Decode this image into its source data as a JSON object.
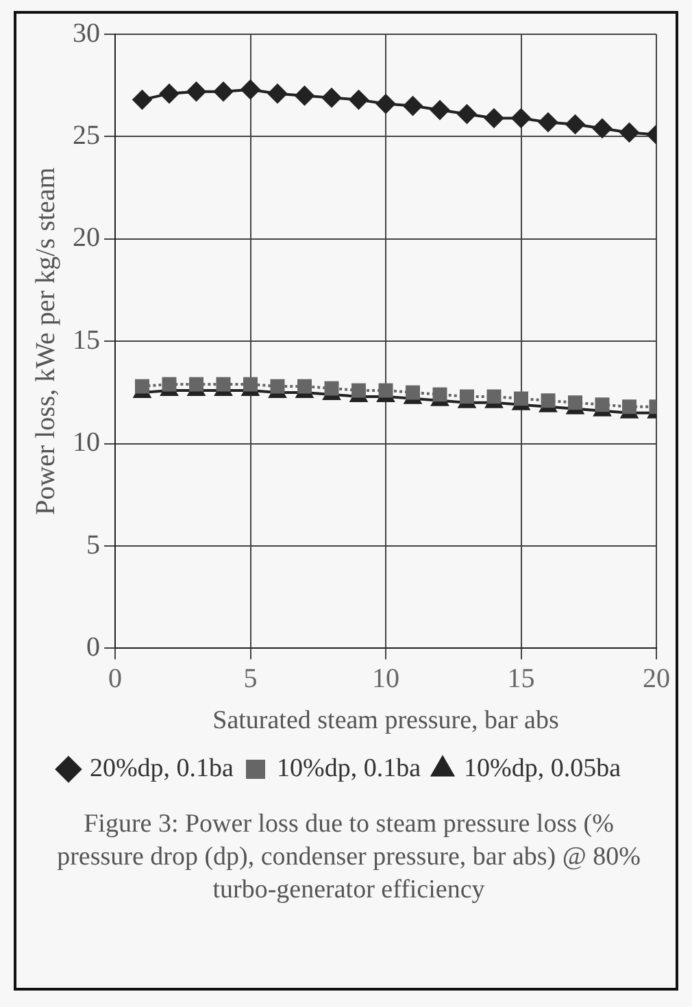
{
  "chart_data": {
    "type": "line",
    "xlabel": "Saturated steam pressure, bar abs",
    "ylabel": "Power loss, kWe per kg/s steam",
    "x": [
      1,
      2,
      3,
      4,
      5,
      6,
      7,
      8,
      9,
      10,
      11,
      12,
      13,
      14,
      15,
      16,
      17,
      18,
      19,
      20
    ],
    "series": [
      {
        "name": "20%dp, 0.1ba",
        "color": "#222222",
        "marker": "diamond",
        "line_style": "solid",
        "values": [
          26.8,
          27.1,
          27.2,
          27.2,
          27.3,
          27.1,
          27.0,
          26.9,
          26.8,
          26.6,
          26.5,
          26.3,
          26.1,
          25.9,
          25.9,
          25.7,
          25.6,
          25.4,
          25.2,
          25.1
        ]
      },
      {
        "name": "10%dp, 0.1ba",
        "color": "#666666",
        "marker": "square",
        "line_style": "dotted",
        "values": [
          12.8,
          12.9,
          12.9,
          12.9,
          12.9,
          12.8,
          12.8,
          12.7,
          12.6,
          12.6,
          12.5,
          12.4,
          12.3,
          12.3,
          12.2,
          12.1,
          12.0,
          11.9,
          11.8,
          11.8
        ]
      },
      {
        "name": "10%dp, 0.05ba",
        "color": "#222222",
        "marker": "triangle",
        "line_style": "solid",
        "values": [
          12.5,
          12.6,
          12.6,
          12.6,
          12.6,
          12.5,
          12.5,
          12.4,
          12.3,
          12.3,
          12.2,
          12.1,
          12.0,
          12.0,
          11.9,
          11.8,
          11.7,
          11.6,
          11.5,
          11.5
        ]
      }
    ],
    "xlim": [
      0,
      20
    ],
    "xticks": [
      0,
      5,
      10,
      15,
      20
    ],
    "ylim": [
      0,
      30
    ],
    "yticks": [
      0,
      5,
      10,
      15,
      20,
      25,
      30
    ],
    "grid": true,
    "legend": "bottom",
    "annotations": [
      "Figure 3:  Power loss due to steam pressure loss (% pressure drop (dp), condenser pressure, bar abs) @ 80% turbo-generator efficiency"
    ]
  }
}
